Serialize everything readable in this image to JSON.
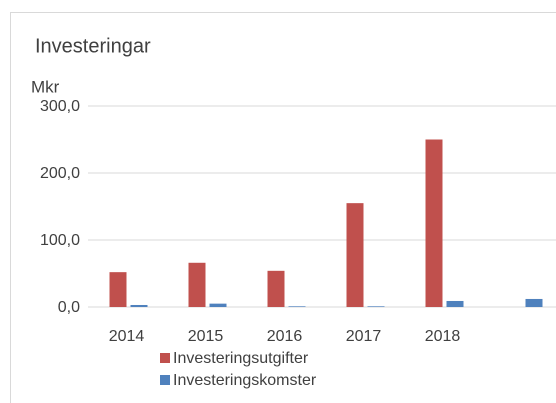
{
  "chart_data": {
    "type": "bar",
    "title": "Investeringar",
    "y_label": "Mkr",
    "categories": [
      "2014",
      "2015",
      "2016",
      "2017",
      "2018",
      null
    ],
    "series": [
      {
        "name": "Investeringsutgifter",
        "color": "#c0504d",
        "values": [
          52,
          66,
          54,
          155,
          250,
          null
        ]
      },
      {
        "name": "Investeringskomster",
        "color": "#4f81bd",
        "values": [
          3,
          5,
          1,
          1,
          9,
          12
        ]
      }
    ],
    "ylim": [
      0,
      300
    ],
    "yticks": [
      {
        "value": 0,
        "label": "0,0"
      },
      {
        "value": 100,
        "label": "100,0"
      },
      {
        "value": 200,
        "label": "200,0"
      },
      {
        "value": 300,
        "label": "300,0"
      }
    ],
    "grid": true
  }
}
